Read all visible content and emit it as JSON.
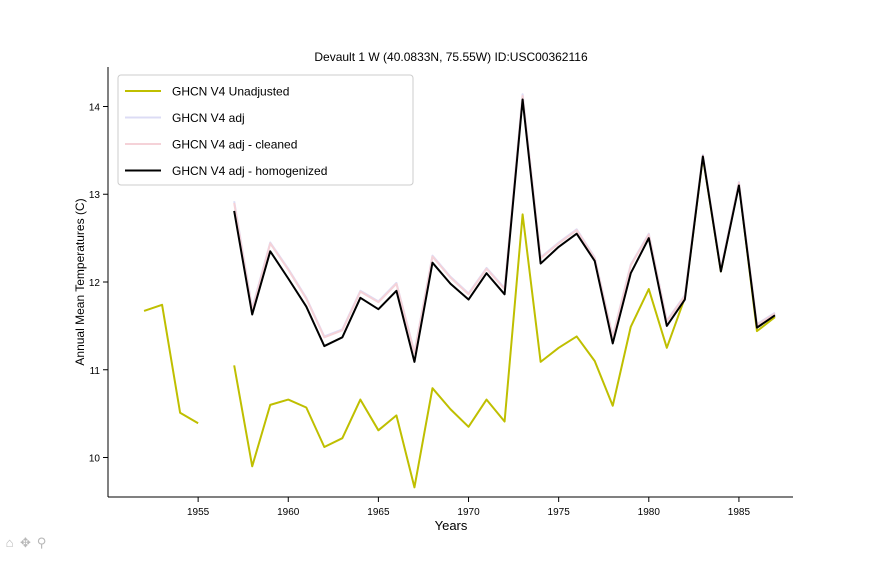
{
  "chart_data": {
    "type": "line",
    "title": "Devault 1 W (40.0833N, 75.55W) ID:USC00362116",
    "xlabel": "Years",
    "ylabel": "Annual Mean Temperatures (C)",
    "xlim": [
      1950,
      1988
    ],
    "ylim": [
      9.55,
      14.45
    ],
    "x_ticks": [
      1955,
      1960,
      1965,
      1970,
      1975,
      1980,
      1985
    ],
    "x_tick_labels": [
      "1955",
      "1960",
      "1965",
      "1970",
      "1975",
      "1980",
      "1985"
    ],
    "y_ticks": [
      10,
      11,
      12,
      13,
      14
    ],
    "y_tick_labels": [
      "10",
      "11",
      "12",
      "13",
      "14"
    ],
    "legend_position": "top-left",
    "series": [
      {
        "name": "GHCN V4 Unadjusted",
        "color": "#bfbf00",
        "points": [
          [
            1952,
            11.67
          ],
          [
            1953,
            11.74
          ],
          [
            1954,
            10.51
          ],
          [
            1955,
            10.39
          ],
          [
            1955.9,
            null
          ],
          [
            1957,
            11.05
          ],
          [
            1958,
            9.9
          ],
          [
            1959,
            10.6
          ],
          [
            1960,
            10.66
          ],
          [
            1961,
            10.57
          ],
          [
            1962,
            10.12
          ],
          [
            1963,
            10.22
          ],
          [
            1964,
            10.66
          ],
          [
            1965,
            10.31
          ],
          [
            1966,
            10.48
          ],
          [
            1967,
            9.66
          ],
          [
            1968,
            10.79
          ],
          [
            1969,
            10.55
          ],
          [
            1970,
            10.35
          ],
          [
            1971,
            10.66
          ],
          [
            1972,
            10.41
          ],
          [
            1973,
            12.77
          ],
          [
            1974,
            11.09
          ],
          [
            1975,
            11.25
          ],
          [
            1976,
            11.38
          ],
          [
            1977,
            11.1
          ],
          [
            1978,
            10.59
          ],
          [
            1979,
            11.49
          ],
          [
            1980,
            11.92
          ],
          [
            1981,
            11.25
          ],
          [
            1982,
            11.82
          ],
          [
            1983,
            13.42
          ],
          [
            1984,
            12.12
          ],
          [
            1985,
            13.12
          ],
          [
            1986,
            11.44
          ],
          [
            1987,
            11.6
          ]
        ]
      },
      {
        "name": "GHCN V4 adj",
        "color": "#dcdcf5",
        "points": [
          [
            1957,
            12.92
          ],
          [
            1958,
            11.7
          ],
          [
            1959,
            12.45
          ],
          [
            1960,
            12.15
          ],
          [
            1961,
            11.82
          ],
          [
            1962,
            11.38
          ],
          [
            1963,
            11.46
          ],
          [
            1964,
            11.9
          ],
          [
            1965,
            11.78
          ],
          [
            1966,
            11.99
          ],
          [
            1967,
            11.2
          ],
          [
            1968,
            12.3
          ],
          [
            1969,
            12.06
          ],
          [
            1970,
            11.87
          ],
          [
            1971,
            12.16
          ],
          [
            1972,
            11.93
          ],
          [
            1973,
            14.14
          ],
          [
            1974,
            12.28
          ],
          [
            1975,
            12.45
          ],
          [
            1976,
            12.6
          ],
          [
            1977,
            12.28
          ],
          [
            1978,
            11.38
          ],
          [
            1979,
            12.2
          ],
          [
            1980,
            12.55
          ],
          [
            1981,
            11.56
          ],
          [
            1982,
            11.85
          ],
          [
            1983,
            13.45
          ],
          [
            1984,
            12.15
          ],
          [
            1985,
            13.14
          ],
          [
            1986,
            11.52
          ],
          [
            1987,
            11.65
          ]
        ]
      },
      {
        "name": "GHCN V4 adj - cleaned",
        "color": "#f5d2d8",
        "points": [
          [
            1957,
            12.9
          ],
          [
            1958,
            11.68
          ],
          [
            1959,
            12.44
          ],
          [
            1960,
            12.14
          ],
          [
            1961,
            11.81
          ],
          [
            1962,
            11.37
          ],
          [
            1963,
            11.45
          ],
          [
            1964,
            11.89
          ],
          [
            1965,
            11.77
          ],
          [
            1966,
            11.98
          ],
          [
            1967,
            11.19
          ],
          [
            1968,
            12.29
          ],
          [
            1969,
            12.05
          ],
          [
            1970,
            11.86
          ],
          [
            1971,
            12.15
          ],
          [
            1972,
            11.92
          ],
          [
            1973,
            14.12
          ],
          [
            1974,
            12.27
          ],
          [
            1975,
            12.44
          ],
          [
            1976,
            12.59
          ],
          [
            1977,
            12.27
          ],
          [
            1978,
            11.37
          ],
          [
            1979,
            12.19
          ],
          [
            1980,
            12.54
          ],
          [
            1981,
            11.55
          ],
          [
            1982,
            11.84
          ],
          [
            1983,
            13.44
          ],
          [
            1984,
            12.14
          ],
          [
            1985,
            13.13
          ],
          [
            1986,
            11.51
          ],
          [
            1987,
            11.64
          ]
        ]
      },
      {
        "name": "GHCN V4 adj - homogenized",
        "color": "#000000",
        "points": [
          [
            1957,
            12.81
          ],
          [
            1958,
            11.63
          ],
          [
            1959,
            12.35
          ],
          [
            1960,
            12.04
          ],
          [
            1961,
            11.72
          ],
          [
            1962,
            11.27
          ],
          [
            1963,
            11.37
          ],
          [
            1964,
            11.82
          ],
          [
            1965,
            11.69
          ],
          [
            1966,
            11.9
          ],
          [
            1967,
            11.09
          ],
          [
            1968,
            12.22
          ],
          [
            1969,
            11.98
          ],
          [
            1970,
            11.8
          ],
          [
            1971,
            12.1
          ],
          [
            1972,
            11.86
          ],
          [
            1973,
            14.08
          ],
          [
            1974,
            12.21
          ],
          [
            1975,
            12.4
          ],
          [
            1976,
            12.55
          ],
          [
            1977,
            12.24
          ],
          [
            1978,
            11.3
          ],
          [
            1979,
            12.1
          ],
          [
            1980,
            12.5
          ],
          [
            1981,
            11.5
          ],
          [
            1982,
            11.8
          ],
          [
            1983,
            13.43
          ],
          [
            1984,
            12.12
          ],
          [
            1985,
            13.1
          ],
          [
            1986,
            11.48
          ],
          [
            1987,
            11.62
          ]
        ]
      }
    ]
  },
  "toolbar": {
    "icons": [
      "home-icon",
      "pan-icon",
      "zoom-icon"
    ],
    "home_glyph": "⌂",
    "pan_glyph": "✥",
    "zoom_glyph": "⚲"
  }
}
